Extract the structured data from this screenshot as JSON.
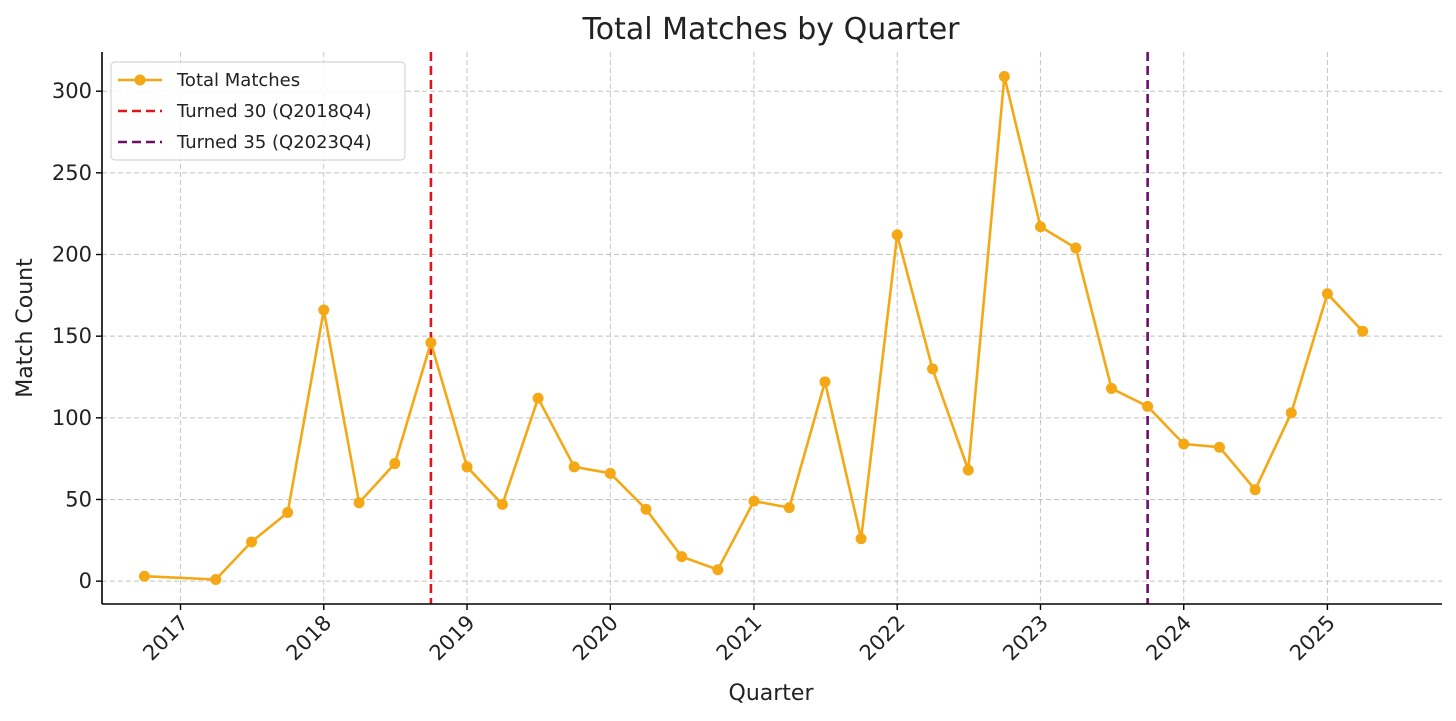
{
  "chart_data": {
    "type": "line",
    "title": "Total Matches by Quarter",
    "xlabel": "Quarter",
    "ylabel": "Match Count",
    "ylim": [
      -14,
      324
    ],
    "xlim": [
      "2016-06-15",
      "2025-10-20"
    ],
    "x_ticks": [
      "2017",
      "2018",
      "2019",
      "2020",
      "2021",
      "2022",
      "2023",
      "2024",
      "2025"
    ],
    "y_ticks": [
      0,
      50,
      100,
      150,
      200,
      250,
      300
    ],
    "grid": true,
    "legend": "top-left",
    "series": [
      {
        "name": "Total Matches",
        "color": "#f5a815",
        "x": [
          "2016-10-01",
          "2017-04-01",
          "2017-07-01",
          "2017-10-01",
          "2018-01-01",
          "2018-04-01",
          "2018-07-01",
          "2018-10-01",
          "2019-01-01",
          "2019-04-01",
          "2019-07-01",
          "2019-10-01",
          "2020-01-01",
          "2020-04-01",
          "2020-07-01",
          "2020-10-01",
          "2021-01-01",
          "2021-04-01",
          "2021-07-01",
          "2021-10-01",
          "2022-01-01",
          "2022-04-01",
          "2022-07-01",
          "2022-10-01",
          "2023-01-01",
          "2023-04-01",
          "2023-07-01",
          "2023-10-01",
          "2024-01-01",
          "2024-04-01",
          "2024-07-01",
          "2024-10-01",
          "2025-01-01",
          "2025-04-01"
        ],
        "values": [
          3,
          1,
          24,
          42,
          166,
          48,
          72,
          146,
          70,
          47,
          112,
          70,
          66,
          44,
          15,
          7,
          49,
          45,
          122,
          26,
          212,
          130,
          68,
          309,
          217,
          204,
          118,
          107,
          84,
          82,
          56,
          103,
          176,
          153
        ]
      }
    ],
    "vlines": [
      {
        "name": "Turned 30 (Q2018Q4)",
        "x": "2018-10-01",
        "color": "#e0141c"
      },
      {
        "name": "Turned 35 (Q2023Q4)",
        "x": "2023-10-01",
        "color": "#6a0f6a"
      }
    ]
  }
}
